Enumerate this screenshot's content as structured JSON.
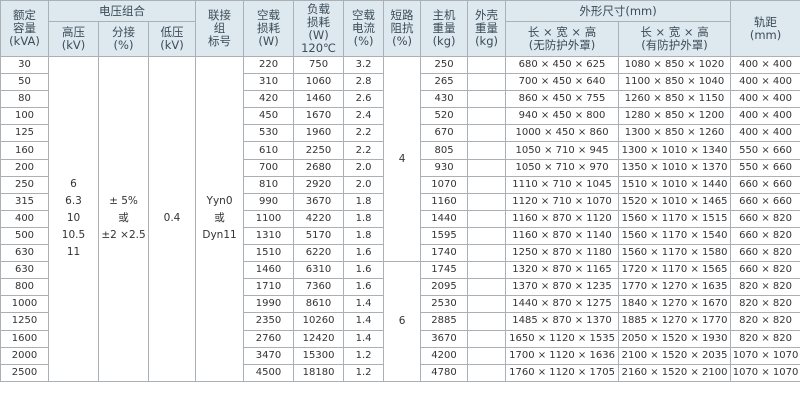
{
  "header": {
    "capacity": [
      "额定",
      "容量",
      "(kVA)"
    ],
    "voltage_group": "电压组合",
    "hv": [
      "高压",
      "(kV)"
    ],
    "tap": [
      "分接",
      "(%)"
    ],
    "lv": [
      "低压",
      "(kV)"
    ],
    "connection": [
      "联接",
      "组",
      "标号"
    ],
    "noload_loss": [
      "空载",
      "损耗",
      "(W)"
    ],
    "load_loss": [
      "负载",
      "损耗",
      "(W)",
      "120℃"
    ],
    "noload_current": [
      "空载",
      "电流",
      "(%)"
    ],
    "impedance": [
      "短路",
      "阻抗",
      "(%)"
    ],
    "main_weight": [
      "主机",
      "重量",
      "(kg)"
    ],
    "shell_weight": [
      "外壳",
      "重量",
      "(kg)"
    ],
    "dimensions": "外形尺寸(mm)",
    "dim_no_cover": [
      "长 × 宽 × 高",
      "(无防护外罩)"
    ],
    "dim_cover": [
      "长 × 宽 × 高",
      "(有防护外罩)"
    ],
    "gauge": [
      "轨距",
      "(mm)"
    ]
  },
  "merged": {
    "hv": [
      "6",
      "6.3",
      "10",
      "10.5",
      "11"
    ],
    "tap": [
      "± 5%",
      "或",
      "±2 ×2.5"
    ],
    "lv": "0.4",
    "connection": [
      "Yyn0",
      "或",
      "Dyn11"
    ],
    "impedance_a": "4",
    "impedance_b": "6"
  },
  "rows": [
    [
      "30",
      "220",
      "750",
      "3.2",
      "250",
      "680 × 450 × 625",
      "1080 × 850 × 1020",
      "400 × 400"
    ],
    [
      "50",
      "310",
      "1060",
      "2.8",
      "265",
      "700 × 450 × 640",
      "1100 × 850 × 1040",
      "400 × 400"
    ],
    [
      "80",
      "420",
      "1460",
      "2.6",
      "430",
      "860 × 450 × 755",
      "1260 × 850 × 1150",
      "400 × 400"
    ],
    [
      "100",
      "450",
      "1670",
      "2.4",
      "520",
      "940 × 450 × 800",
      "1280 × 850 × 1200",
      "400 × 400"
    ],
    [
      "125",
      "530",
      "1960",
      "2.2",
      "670",
      "1000 × 450 × 860",
      "1300 × 850 × 1260",
      "400 × 400"
    ],
    [
      "160",
      "610",
      "2250",
      "2.2",
      "805",
      "1050 × 710 × 945",
      "1300 × 1010 × 1340",
      "550 × 660"
    ],
    [
      "200",
      "700",
      "2680",
      "2.0",
      "930",
      "1050 × 710 × 970",
      "1350 × 1010 × 1370",
      "550 × 660"
    ],
    [
      "250",
      "810",
      "2920",
      "2.0",
      "1070",
      "1110 × 710 × 1045",
      "1510 × 1010 × 1440",
      "660 × 660"
    ],
    [
      "315",
      "990",
      "3670",
      "1.8",
      "1160",
      "1120 × 710 × 1070",
      "1520 × 1010 × 1465",
      "660 × 660"
    ],
    [
      "400",
      "1100",
      "4220",
      "1.8",
      "1440",
      "1160 × 870 × 1120",
      "1560 × 1170 × 1515",
      "660 × 820"
    ],
    [
      "500",
      "1310",
      "5170",
      "1.8",
      "1595",
      "1160 × 870 × 1140",
      "1560 × 1170 × 1540",
      "660 × 820"
    ],
    [
      "630",
      "1510",
      "6220",
      "1.6",
      "1740",
      "1250 × 870 × 1180",
      "1560 × 1170 × 1580",
      "660 × 820"
    ],
    [
      "630",
      "1460",
      "6310",
      "1.6",
      "1745",
      "1320 × 870 × 1165",
      "1720 × 1170 × 1565",
      "660 × 820"
    ],
    [
      "800",
      "1710",
      "7360",
      "1.6",
      "2095",
      "1370 × 870 × 1235",
      "1770 × 1270 × 1635",
      "820 × 820"
    ],
    [
      "1000",
      "1990",
      "8610",
      "1.4",
      "2530",
      "1440 × 870 × 1275",
      "1840 × 1270 × 1670",
      "820 × 820"
    ],
    [
      "1250",
      "2350",
      "10260",
      "1.4",
      "2885",
      "1485 × 870 × 1370",
      "1885 × 1270 × 1770",
      "820 × 820"
    ],
    [
      "1600",
      "2760",
      "12420",
      "1.4",
      "3670",
      "1650 × 1120 × 1535",
      "2050 × 1520 × 1930",
      "820 × 820"
    ],
    [
      "2000",
      "3470",
      "15300",
      "1.2",
      "4200",
      "1700 × 1120 × 1636",
      "2100 × 1520 × 2035",
      "1070 × 1070"
    ],
    [
      "2500",
      "4500",
      "18180",
      "1.2",
      "4780",
      "1760 × 1120 × 1705",
      "2160 × 1520 × 2100",
      "1070 × 1070"
    ]
  ]
}
